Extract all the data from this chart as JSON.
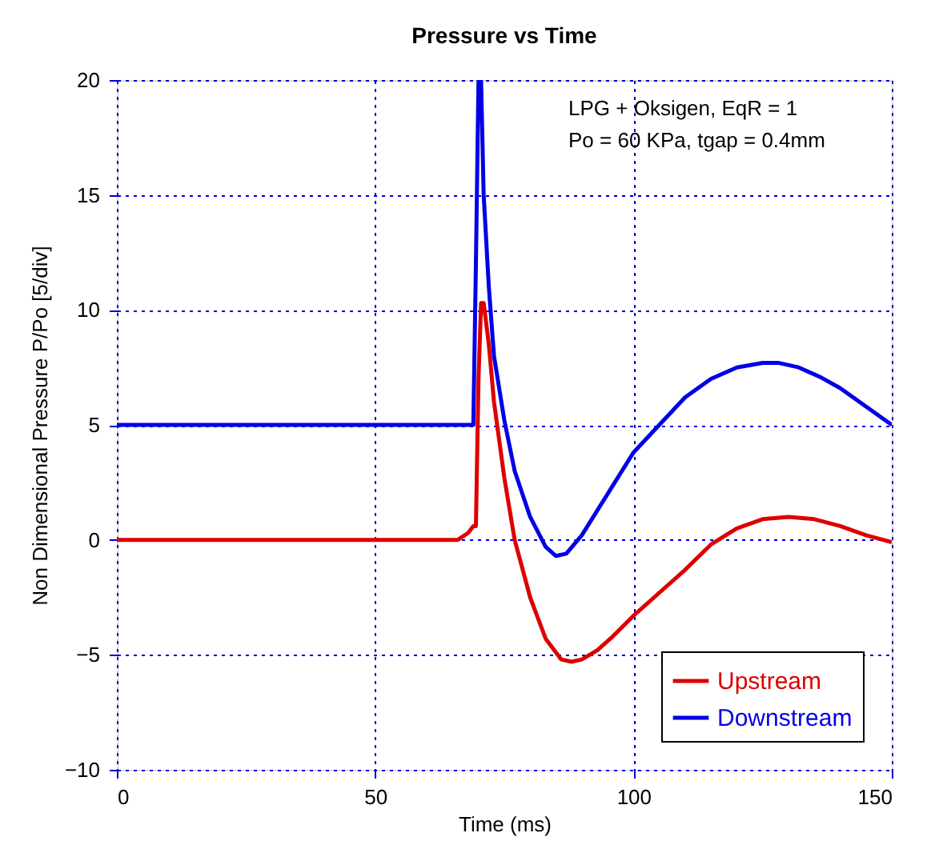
{
  "chart_data": {
    "type": "line",
    "title": "Pressure vs Time",
    "xlabel": "Time (ms)",
    "ylabel": "Non Dimensional Pressure P/Po [5/div]",
    "annotations": [
      "LPG + Oksigen, EqR = 1",
      "Po = 60 KPa, tgap = 0.4mm"
    ],
    "xlim": [
      0,
      150
    ],
    "xticks": [
      0,
      50,
      100,
      150
    ],
    "ylim": [
      -10,
      20
    ],
    "yticks": [
      -10,
      -5,
      0,
      5,
      10,
      15,
      20
    ],
    "grid": true,
    "legend": "bottom right",
    "line_style": "solid",
    "series": [
      {
        "name": "Upstream",
        "color": "#dd0000",
        "x": [
          0,
          66,
          68,
          69,
          69.5,
          70,
          70.5,
          71,
          72,
          73,
          75,
          77,
          80,
          83,
          86,
          88,
          90,
          93,
          96,
          100,
          105,
          110,
          115,
          120,
          125,
          130,
          135,
          140,
          145,
          150
        ],
        "values": [
          0,
          0,
          0.3,
          0.6,
          0.6,
          7,
          10.3,
          10.3,
          8.5,
          6,
          2.7,
          0,
          -2.5,
          -4.3,
          -5.2,
          -5.3,
          -5.2,
          -4.8,
          -4.2,
          -3.3,
          -2.3,
          -1.3,
          -0.2,
          0.5,
          0.9,
          1,
          0.9,
          0.6,
          0.2,
          -0.1
        ]
      },
      {
        "name": "Downstream",
        "color": "#0000e6",
        "x": [
          0,
          69,
          69.5,
          70,
          70.5,
          71,
          72,
          73,
          75,
          77,
          80,
          83,
          85,
          87,
          90,
          95,
          100,
          105,
          110,
          115,
          120,
          125,
          128,
          132,
          136,
          140,
          145,
          150
        ],
        "values": [
          5,
          5,
          12,
          20,
          20,
          15,
          11,
          8,
          5.2,
          3,
          1,
          -0.3,
          -0.7,
          -0.6,
          0.2,
          2,
          3.8,
          5,
          6.2,
          7,
          7.5,
          7.7,
          7.7,
          7.5,
          7.1,
          6.6,
          5.8,
          5
        ]
      }
    ]
  }
}
